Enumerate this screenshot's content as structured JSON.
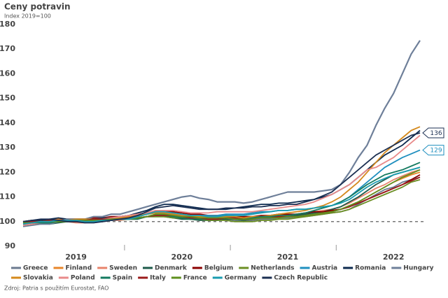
{
  "chart_data": {
    "type": "line",
    "title": "Ceny potravin",
    "subtitle": "Index 2019=100",
    "source": "Zdroj: Patria s použitím Eurostat, FAO",
    "categories": [
      null,
      null,
      null,
      null,
      null,
      null,
      "2019",
      null,
      null,
      null,
      null,
      null,
      null,
      null,
      null,
      null,
      null,
      null,
      "2020",
      null,
      null,
      null,
      null,
      null,
      null,
      null,
      null,
      null,
      null,
      null,
      "2021",
      null,
      null,
      null,
      null,
      null,
      null,
      null,
      null,
      null,
      null,
      null,
      "2022",
      null,
      null,
      null
    ],
    "ylim": [
      90,
      180
    ],
    "yticks": [
      90,
      100,
      110,
      120,
      130,
      140,
      150,
      160,
      170,
      180
    ],
    "grid": false,
    "reference_line": 100,
    "legend": "bottom",
    "series": [
      {
        "name": "Greece",
        "color": "#6b7a8f",
        "values": [
          98,
          98.5,
          99,
          99.5,
          100,
          100,
          100.5,
          100,
          100,
          100.5,
          100.5,
          101,
          101,
          101.5,
          102,
          102.5,
          102.5,
          102,
          101.5,
          101,
          101,
          100.5,
          100.5,
          101,
          100.5,
          100,
          100.5,
          101,
          101,
          101.5,
          101.5,
          102,
          102,
          102.5,
          103,
          103.5,
          104,
          105,
          107,
          109,
          111,
          113,
          114,
          116,
          117,
          118
        ]
      },
      {
        "name": "Finland",
        "color": "#e8862a",
        "values": [
          100,
          100.5,
          100,
          100.5,
          101,
          101,
          100.5,
          100.5,
          101,
          101,
          101,
          101.5,
          102,
          102,
          103,
          103.5,
          103,
          103,
          102.5,
          102,
          102,
          101.5,
          101.5,
          101.5,
          101,
          101,
          101.5,
          101.5,
          102,
          102,
          102.5,
          102.5,
          103,
          103.5,
          104,
          104.5,
          105,
          106.5,
          108,
          110,
          112,
          114,
          116,
          117.5,
          119,
          120
        ]
      },
      {
        "name": "Sweden",
        "color": "#e8836b",
        "values": [
          99,
          99,
          99.5,
          100,
          100,
          100,
          99.5,
          99.5,
          100,
          100,
          100.5,
          100.5,
          101,
          101,
          102,
          102.5,
          102,
          102,
          101.5,
          101.5,
          101,
          101,
          101,
          101.5,
          101.5,
          101,
          101.5,
          102,
          102,
          102.5,
          102.5,
          103,
          103.5,
          104,
          104.5,
          105,
          106,
          107.5,
          109.5,
          111.5,
          113.5,
          115,
          117,
          118.5,
          120,
          121
        ]
      },
      {
        "name": "Denmark",
        "color": "#1d5a4a",
        "values": [
          100,
          99.5,
          99.5,
          99,
          99.5,
          100,
          100,
          100.5,
          100,
          100,
          100.5,
          101,
          101,
          101.5,
          102,
          102,
          102,
          101.5,
          101,
          101,
          100.5,
          100.5,
          100.5,
          101,
          101,
          100.5,
          101,
          101.5,
          101.5,
          102,
          102,
          102.5,
          103,
          103.5,
          104,
          105,
          106,
          108,
          110,
          112.5,
          115,
          117,
          119,
          120,
          121,
          122
        ]
      },
      {
        "name": "Belgium",
        "color": "#8b0000",
        "values": [
          99.5,
          100,
          100,
          100.5,
          100.5,
          101,
          101,
          101,
          101.5,
          101.5,
          102,
          102,
          102.5,
          103,
          103.5,
          104,
          104,
          104,
          103.5,
          103,
          103,
          102.5,
          102.5,
          102.5,
          102,
          102,
          102,
          102.5,
          102.5,
          103,
          103,
          103,
          103.5,
          104,
          104,
          104.5,
          105,
          106,
          107.5,
          109,
          110.5,
          112,
          113.5,
          115,
          117,
          119
        ]
      },
      {
        "name": "Netherlands",
        "color": "#6b8e23",
        "values": [
          99,
          99.5,
          99.5,
          100,
          100,
          100,
          100.5,
          100.5,
          100.5,
          101,
          101,
          101,
          101,
          101.5,
          102,
          102,
          102,
          101.5,
          101.5,
          101,
          101,
          100.5,
          100.5,
          100.5,
          100,
          100,
          100,
          100.5,
          100.5,
          101,
          101,
          101.5,
          102,
          102.5,
          103,
          103.5,
          104,
          105,
          106.5,
          108,
          109.5,
          111,
          112.5,
          114,
          116,
          117
        ]
      },
      {
        "name": "Austria",
        "color": "#1f8fbf",
        "values": [
          99.5,
          100,
          100,
          100,
          100.5,
          100.5,
          100.5,
          101,
          101,
          101,
          101.5,
          101.5,
          102,
          102.5,
          103,
          103.5,
          103.5,
          103,
          103,
          102.5,
          102.5,
          102.5,
          102.5,
          103,
          103,
          103,
          103.5,
          104,
          104,
          104.5,
          104.5,
          105,
          105,
          105.5,
          106,
          106.5,
          108,
          110,
          113,
          116,
          119,
          122,
          124,
          126,
          127.5,
          129
        ]
      },
      {
        "name": "Romania",
        "color": "#0d2a4f",
        "values": [
          100,
          100.5,
          100.5,
          101,
          101.5,
          101,
          101,
          101,
          101,
          101.5,
          101.5,
          102,
          102.5,
          103.5,
          104.5,
          106,
          107,
          107,
          106.5,
          106,
          105.5,
          105,
          105,
          105,
          105.5,
          106,
          106.5,
          107,
          107,
          107.5,
          107.5,
          108,
          108.5,
          109,
          110,
          111,
          113,
          115,
          118,
          121,
          124,
          127,
          129,
          131,
          134,
          137
        ]
      },
      {
        "name": "Hungary",
        "color": "#6e7f99",
        "values": [
          100,
          100,
          99,
          99,
          100,
          101,
          101,
          101,
          102,
          102,
          103,
          103,
          104,
          105,
          106,
          107,
          108,
          109,
          110,
          110.5,
          109.5,
          109,
          108,
          108,
          108,
          107.5,
          108,
          109,
          110,
          111,
          112,
          112,
          112,
          112,
          112.5,
          113,
          115,
          120,
          126,
          131,
          139,
          146,
          152,
          160,
          168,
          173.5
        ]
      },
      {
        "name": "Slovakia",
        "color": "#d4891c",
        "values": [
          99,
          99.5,
          100,
          100,
          100.5,
          100.5,
          101,
          101,
          101,
          101,
          101.5,
          101.5,
          102,
          102.5,
          103,
          103.5,
          103.5,
          103,
          103,
          102.5,
          102,
          102,
          102,
          102,
          102,
          101.5,
          102,
          102,
          102.5,
          103,
          103.5,
          104,
          104.5,
          105.5,
          106.5,
          108,
          110,
          113,
          116,
          120,
          124,
          128,
          131,
          134,
          137,
          138.5
        ]
      },
      {
        "name": "Poland",
        "color": "#e88a8a",
        "values": [
          98.5,
          99,
          99.5,
          100,
          100.5,
          100.5,
          100.5,
          100.5,
          101,
          101,
          101.5,
          102,
          102.5,
          103,
          103.5,
          104.5,
          104.5,
          104.5,
          104,
          103.5,
          103.5,
          103.5,
          104,
          104,
          104,
          104,
          104,
          104.5,
          105,
          105.5,
          106,
          106.5,
          107,
          108,
          109.5,
          111,
          113,
          115,
          118,
          121,
          122,
          124,
          126,
          129,
          132,
          135
        ]
      },
      {
        "name": "Spain",
        "color": "#137a5f",
        "values": [
          100,
          99.5,
          99.5,
          99.5,
          100,
          100,
          100.5,
          100,
          100,
          100.5,
          100.5,
          101,
          101,
          101,
          102,
          102.5,
          102.5,
          102,
          101.5,
          101,
          101,
          101,
          101,
          101.5,
          101.5,
          101,
          101.5,
          102,
          102,
          102.5,
          102.5,
          103,
          103.5,
          104.5,
          105.5,
          106.5,
          108,
          110,
          112.5,
          115,
          117,
          119,
          120,
          121,
          122.5,
          124
        ]
      },
      {
        "name": "Italy",
        "color": "#9b1b1b",
        "values": [
          100,
          100,
          100,
          100.5,
          100.5,
          100.5,
          100.5,
          100.5,
          101,
          101,
          101,
          101,
          101.5,
          101.5,
          102,
          102.5,
          102.5,
          102.5,
          102,
          101.5,
          101.5,
          101,
          101,
          101.5,
          101.5,
          101,
          101,
          101.5,
          101.5,
          102,
          102,
          102,
          102.5,
          103,
          103.5,
          104,
          105,
          106,
          107.5,
          109,
          110.5,
          112,
          113.5,
          115,
          116.5,
          118
        ]
      },
      {
        "name": "France",
        "color": "#5e8f1e",
        "values": [
          99.5,
          99.5,
          100,
          100,
          100,
          100,
          100.5,
          100.5,
          100.5,
          100.5,
          101,
          101,
          101,
          101.5,
          102,
          103,
          103,
          102.5,
          102,
          102,
          101.5,
          101.5,
          101.5,
          101.5,
          101,
          101,
          101,
          101.5,
          101.5,
          101.5,
          102,
          102,
          102.5,
          103,
          103.5,
          104,
          105,
          106.5,
          108,
          110,
          112,
          114,
          116,
          118,
          119.5,
          121
        ]
      },
      {
        "name": "Germany",
        "color": "#1a9cb0",
        "values": [
          99,
          99.5,
          100,
          100,
          100.5,
          100.5,
          100.5,
          100,
          100,
          100.5,
          100.5,
          101,
          101,
          102,
          103,
          104,
          104,
          103.5,
          103,
          102.5,
          102.5,
          102,
          102,
          102.5,
          102.5,
          102.5,
          103,
          103.5,
          104,
          104.5,
          104.5,
          105,
          105,
          105.5,
          106,
          106.5,
          107.5,
          109,
          111.5,
          114,
          116,
          117.5,
          119,
          120,
          121,
          122
        ]
      },
      {
        "name": "Czech Republic",
        "color": "#1b2f52",
        "values": [
          100,
          100.5,
          101,
          101,
          100.5,
          100,
          100,
          99.5,
          99.5,
          100,
          100.5,
          101,
          101.5,
          102.5,
          104,
          105.5,
          106,
          106.5,
          106,
          105.5,
          105,
          105,
          105,
          105.5,
          105.5,
          105.5,
          106,
          106,
          106.5,
          106.5,
          107,
          107,
          108,
          109,
          110.5,
          112,
          115,
          118,
          121,
          124,
          127,
          129,
          131,
          133,
          135,
          136
        ]
      }
    ],
    "callouts": [
      15,
      6
    ]
  }
}
